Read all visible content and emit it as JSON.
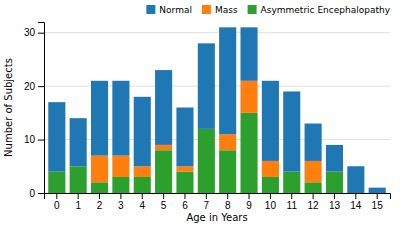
{
  "chart_data": {
    "type": "bar",
    "stacked": true,
    "xlabel": "Age in Years",
    "ylabel": "Number of Subjects",
    "categories": [
      "0",
      "1",
      "2",
      "3",
      "4",
      "5",
      "6",
      "7",
      "8",
      "9",
      "10",
      "11",
      "12",
      "13",
      "14",
      "15"
    ],
    "series": [
      {
        "name": "Normal",
        "values": [
          13,
          9,
          14,
          14,
          13,
          14,
          11,
          16,
          20,
          10,
          15,
          15,
          7,
          5,
          5,
          1
        ]
      },
      {
        "name": "Mass",
        "values": [
          0,
          0,
          5,
          4,
          2,
          1,
          1,
          0,
          3,
          6,
          3,
          0,
          4,
          0,
          0,
          0
        ]
      },
      {
        "name": "Asymmetric Encephalopathy",
        "values": [
          4,
          5,
          2,
          3,
          3,
          8,
          4,
          12,
          8,
          15,
          3,
          4,
          2,
          4,
          0,
          0
        ]
      }
    ],
    "ylim": [
      0,
      32
    ],
    "yticks": [
      0,
      10,
      20,
      30
    ],
    "grid": true,
    "legend": "upper right"
  }
}
